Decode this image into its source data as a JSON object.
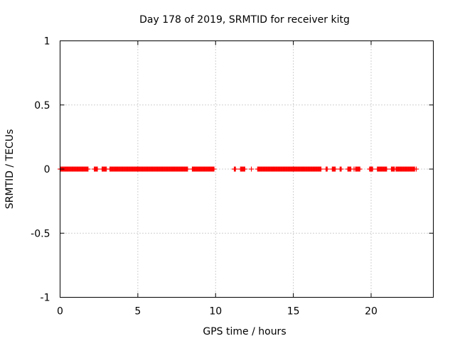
{
  "chart_data": {
    "type": "scatter",
    "title": "Day 178 of 2019, SRMTID for receiver kitg",
    "xlabel": "GPS time / hours",
    "ylabel": "SRMTID / TECUs",
    "xlim": [
      0,
      24
    ],
    "ylim": [
      -1,
      1
    ],
    "xticks": [
      0,
      5,
      10,
      15,
      20
    ],
    "xtick_labels": [
      "0",
      "5",
      "10",
      "15",
      "20"
    ],
    "yticks": [
      1,
      0.5,
      0,
      -0.5,
      -1
    ],
    "ytick_labels": [
      "1",
      "0.5",
      "0",
      "-0.5",
      "-1"
    ],
    "grid": true,
    "series": [
      {
        "name": "SRMTID",
        "color": "#ff0000",
        "marker": "plus",
        "y_value": 0,
        "x_ranges": [
          [
            0.0,
            1.8
          ],
          [
            2.2,
            2.4
          ],
          [
            2.7,
            3.0
          ],
          [
            3.2,
            8.2
          ],
          [
            8.5,
            9.9
          ],
          [
            11.2,
            11.3
          ],
          [
            11.6,
            11.9
          ],
          [
            12.7,
            16.8
          ],
          [
            17.1,
            17.2
          ],
          [
            17.5,
            17.7
          ],
          [
            18.0,
            18.1
          ],
          [
            18.5,
            18.7
          ],
          [
            19.0,
            19.3
          ],
          [
            19.9,
            20.1
          ],
          [
            20.4,
            21.0
          ],
          [
            21.3,
            21.5
          ],
          [
            21.6,
            22.8
          ]
        ],
        "x_isolated": [
          0.4,
          1.1,
          3.6,
          5.9,
          6.4,
          7.3,
          9.1,
          12.3,
          13.7,
          14.9,
          15.6,
          18.9,
          22.9
        ]
      }
    ]
  }
}
